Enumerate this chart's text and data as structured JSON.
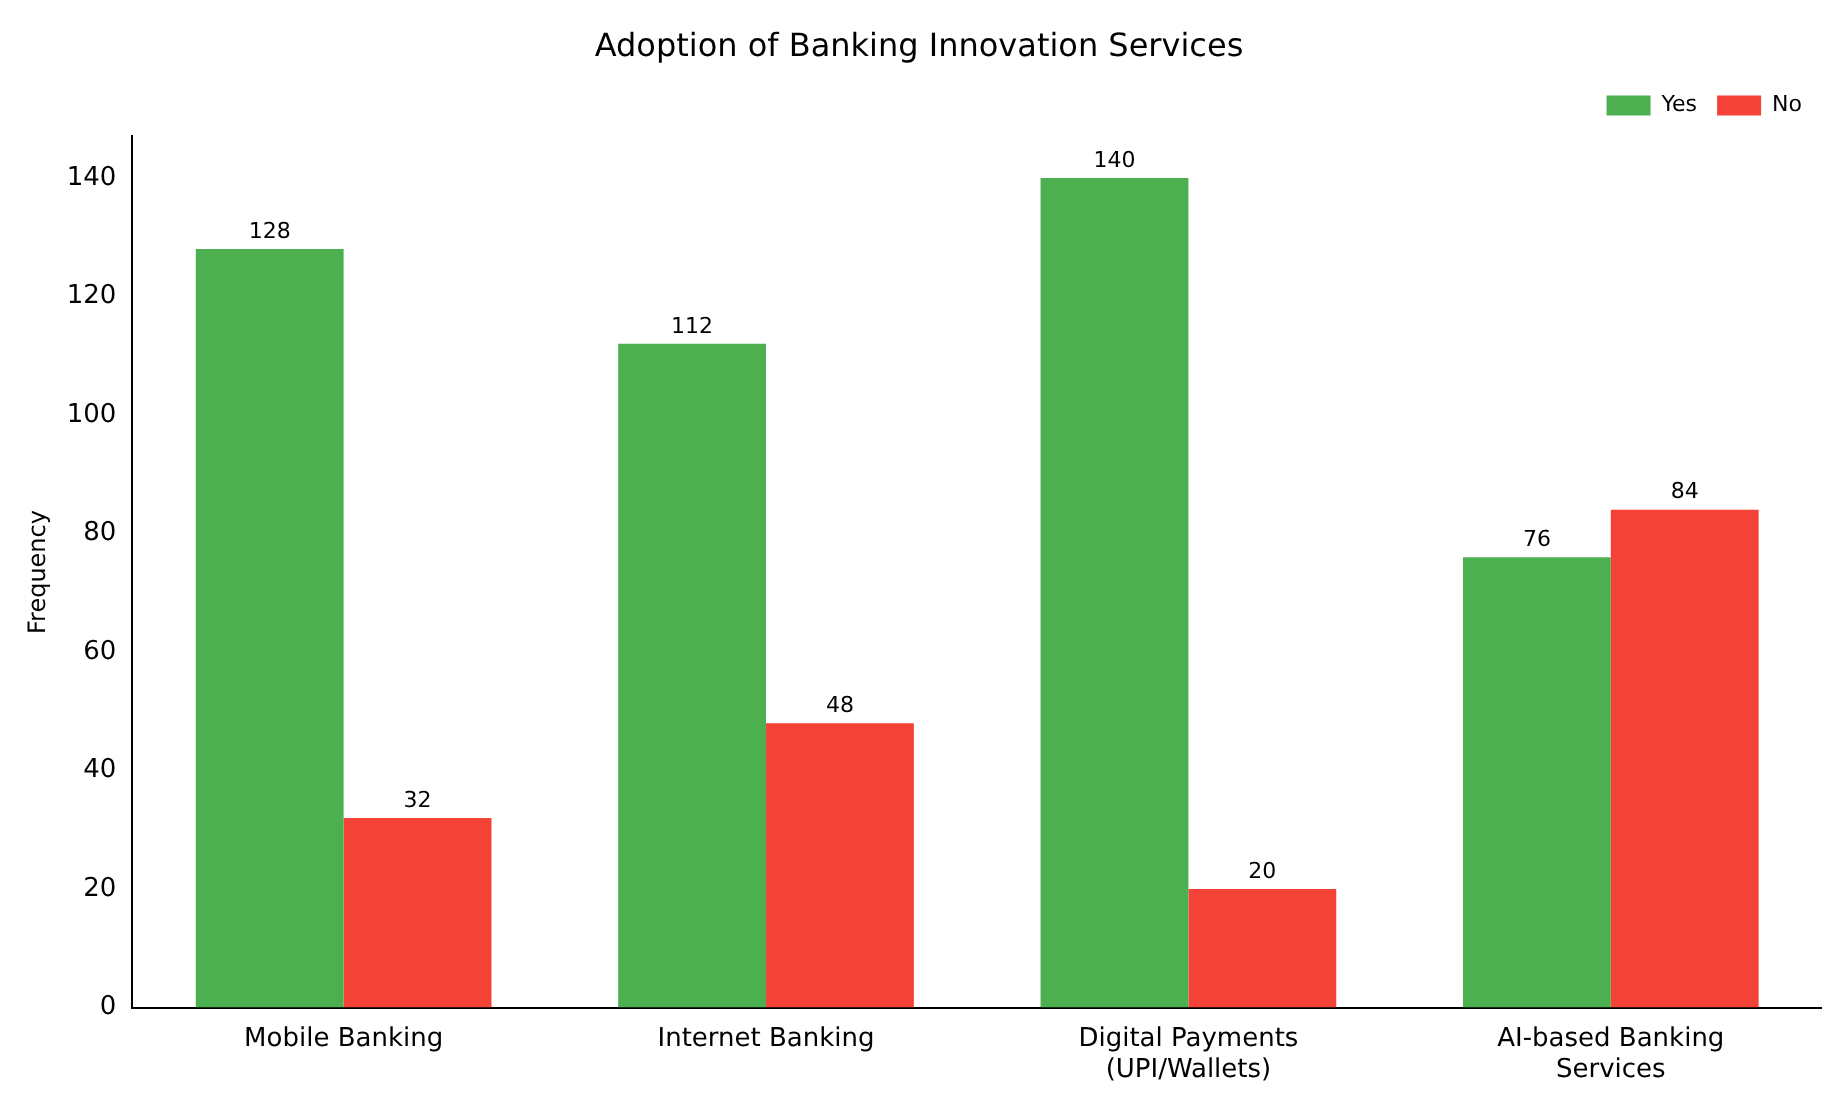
{
  "chart_data": {
    "type": "bar",
    "title": "Adoption of Banking Innovation Services",
    "ylabel": "Frequency",
    "categories": [
      "Mobile Banking",
      "Internet Banking",
      "Digital Payments\n(UPI/Wallets)",
      "AI-based Banking\nServices"
    ],
    "series": [
      {
        "name": "Yes",
        "color": "#4caf50",
        "values": [
          128,
          112,
          140,
          76
        ]
      },
      {
        "name": "No",
        "color": "#f44336",
        "values": [
          32,
          48,
          20,
          84
        ]
      }
    ],
    "ylim": [
      0,
      147
    ],
    "yticks": [
      0,
      20,
      40,
      60,
      80,
      100,
      120,
      140
    ],
    "grid": false,
    "legend": "top right",
    "data_labels": true
  }
}
